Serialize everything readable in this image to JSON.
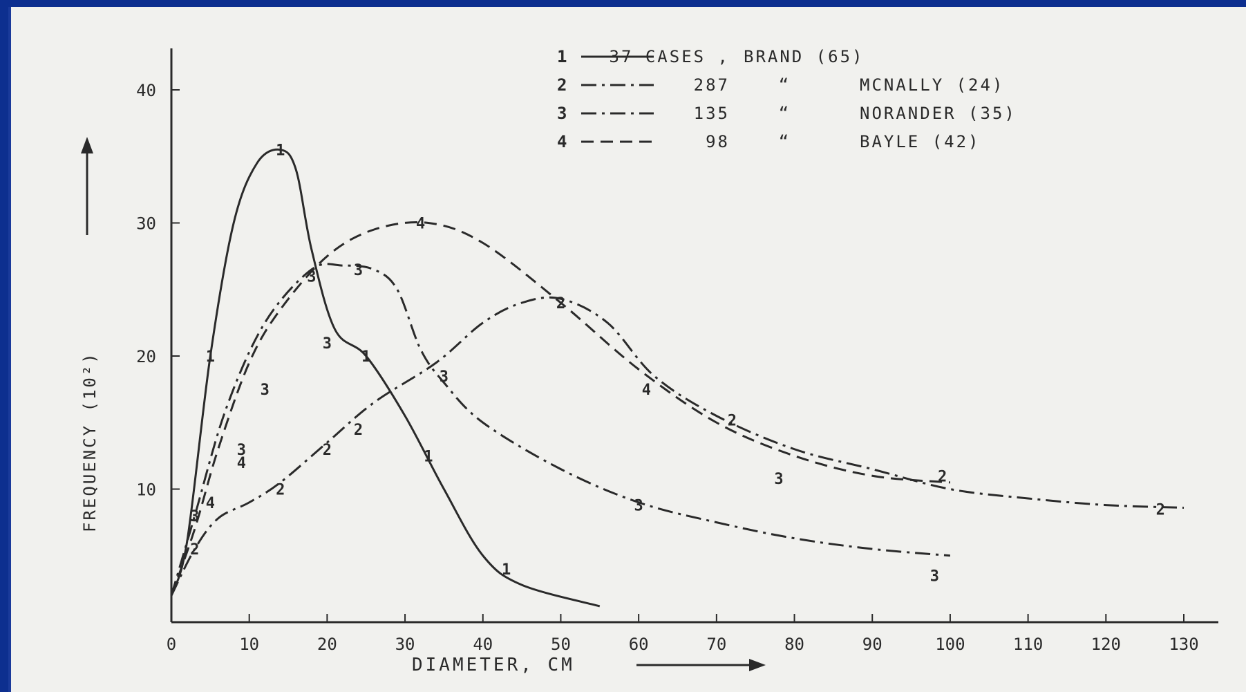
{
  "chart_data": {
    "type": "line",
    "title": "",
    "xlabel": "DIAMETER, CM",
    "ylabel": "FREQUENCY (10²)",
    "xlim": [
      0,
      130
    ],
    "ylim": [
      0,
      40
    ],
    "xticks": [
      0,
      10,
      20,
      30,
      40,
      50,
      60,
      70,
      80,
      90,
      100,
      110,
      120,
      130
    ],
    "yticks": [
      10,
      20,
      30,
      40
    ],
    "grid": false,
    "legend_position": "top-right",
    "series": [
      {
        "id": "1",
        "legend_number": "37 CASES ,",
        "legend_author": "BRAND (65)",
        "dash": "solid",
        "color": "#2a2a2a",
        "points": [
          [
            0,
            2
          ],
          [
            2,
            6
          ],
          [
            5,
            20
          ],
          [
            8,
            30
          ],
          [
            11,
            34.5
          ],
          [
            14,
            35.5
          ],
          [
            16,
            34
          ],
          [
            18,
            28
          ],
          [
            21,
            22
          ],
          [
            25,
            20
          ],
          [
            30,
            15.5
          ],
          [
            35,
            10
          ],
          [
            40,
            5
          ],
          [
            45,
            2.8
          ],
          [
            55,
            1.2
          ]
        ],
        "markers": [
          [
            5,
            20
          ],
          [
            14,
            35.5
          ],
          [
            25,
            20
          ],
          [
            33,
            12.5
          ],
          [
            43,
            4
          ]
        ]
      },
      {
        "id": "2",
        "legend_number": "287",
        "legend_author": "MCNALLY (24)",
        "dash": "dashdot",
        "color": "#2a2a2a",
        "points": [
          [
            0,
            2
          ],
          [
            3,
            5.5
          ],
          [
            6,
            7.8
          ],
          [
            10,
            9
          ],
          [
            14,
            10.5
          ],
          [
            20,
            13.5
          ],
          [
            26,
            16.5
          ],
          [
            34,
            19.5
          ],
          [
            40,
            22.5
          ],
          [
            45,
            24
          ],
          [
            50,
            24.3
          ],
          [
            56,
            22.5
          ],
          [
            62,
            18.5
          ],
          [
            70,
            15.5
          ],
          [
            80,
            13
          ],
          [
            90,
            11.5
          ],
          [
            100,
            10
          ],
          [
            110,
            9.3
          ],
          [
            120,
            8.8
          ],
          [
            130,
            8.6
          ]
        ],
        "markers": [
          [
            3,
            5.5
          ],
          [
            14,
            10
          ],
          [
            20,
            13
          ],
          [
            24,
            14.5
          ],
          [
            50,
            24
          ],
          [
            72,
            15.2
          ],
          [
            99,
            11
          ],
          [
            127,
            8.5
          ]
        ]
      },
      {
        "id": "3",
        "legend_number": "135",
        "legend_author": "NORANDER (35)",
        "dash": "dashdot",
        "color": "#2a2a2a",
        "points": [
          [
            0,
            2
          ],
          [
            3,
            8
          ],
          [
            7,
            16
          ],
          [
            12,
            22.5
          ],
          [
            18,
            26.5
          ],
          [
            22,
            26.8
          ],
          [
            26,
            26.5
          ],
          [
            29,
            25
          ],
          [
            32,
            20.5
          ],
          [
            35,
            18
          ],
          [
            40,
            15
          ],
          [
            50,
            11.5
          ],
          [
            60,
            9
          ],
          [
            70,
            7.5
          ],
          [
            80,
            6.3
          ],
          [
            90,
            5.5
          ],
          [
            100,
            5
          ]
        ],
        "markers": [
          [
            3,
            8
          ],
          [
            9,
            13
          ],
          [
            12,
            17.5
          ],
          [
            18,
            26
          ],
          [
            20,
            21
          ],
          [
            24,
            26.5
          ],
          [
            35,
            18.5
          ],
          [
            60,
            8.8
          ],
          [
            78,
            10.8
          ],
          [
            98,
            3.5
          ]
        ]
      },
      {
        "id": "4",
        "legend_number": "98",
        "legend_author": "BAYLE (42)",
        "dash": "dashed",
        "color": "#2a2a2a",
        "points": [
          [
            0,
            2
          ],
          [
            3,
            7
          ],
          [
            6,
            13
          ],
          [
            10,
            19.5
          ],
          [
            14,
            23.5
          ],
          [
            20,
            27.5
          ],
          [
            26,
            29.5
          ],
          [
            33,
            30
          ],
          [
            40,
            28.5
          ],
          [
            50,
            24
          ],
          [
            60,
            19
          ],
          [
            70,
            15
          ],
          [
            80,
            12.5
          ],
          [
            90,
            11
          ],
          [
            100,
            10.5
          ]
        ],
        "markers": [
          [
            5,
            9
          ],
          [
            9,
            12
          ],
          [
            32,
            30
          ],
          [
            61,
            17.5
          ]
        ]
      }
    ]
  }
}
